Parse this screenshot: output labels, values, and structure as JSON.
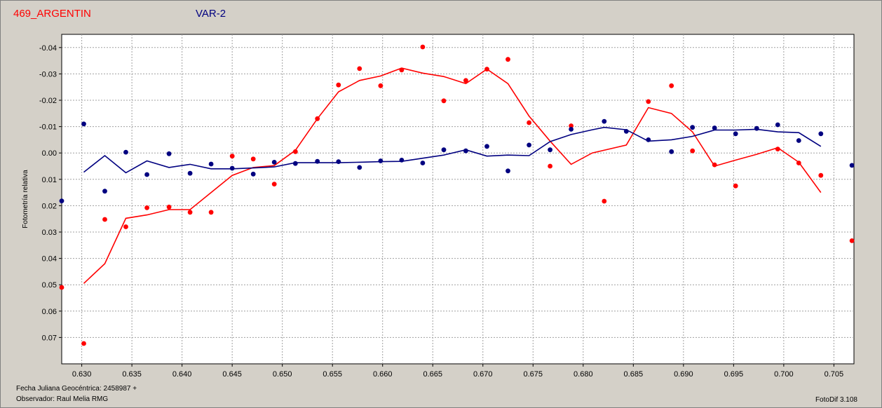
{
  "header": {
    "comparison_label": "469_ARGENTIN",
    "variable_label": "VAR-2"
  },
  "footer": {
    "julian_label": "Fecha Juliana Geocéntrica: 2458987 +",
    "observer_label": "Observador: Raul Melia RMG",
    "software_label": "FotoDif 3.108"
  },
  "colors": {
    "background": "#d4d0c8",
    "plot_area": "#ffffff",
    "grid": "#a0a0a0",
    "series_red": "#ff0000",
    "series_blue": "#000080"
  },
  "chart_data": {
    "type": "scatter",
    "ylabel": "Fotometría relativa",
    "xlabel": "",
    "xlim": [
      0.628,
      0.707
    ],
    "ylim": [
      0.08,
      -0.045
    ],
    "y_inverted": true,
    "grid": true,
    "x_ticks": [
      0.63,
      0.635,
      0.64,
      0.645,
      0.65,
      0.655,
      0.66,
      0.665,
      0.67,
      0.675,
      0.68,
      0.685,
      0.69,
      0.695,
      0.7,
      0.705
    ],
    "x_tick_labels": [
      "0.630",
      "0.635",
      "0.640",
      "0.645",
      "0.650",
      "0.655",
      "0.660",
      "0.665",
      "0.670",
      "0.675",
      "0.680",
      "0.685",
      "0.690",
      "0.695",
      "0.700",
      "0.705"
    ],
    "y_ticks": [
      -0.04,
      -0.03,
      -0.02,
      -0.01,
      0.0,
      0.01,
      0.02,
      0.03,
      0.04,
      0.05,
      0.06,
      0.07
    ],
    "y_tick_labels": [
      "-0.04",
      "-0.03",
      "-0.02",
      "-0.01",
      "0.00",
      "0.01",
      "0.02",
      "0.03",
      "0.04",
      "0.05",
      "0.06",
      "0.07"
    ],
    "series": [
      {
        "color": "#ff0000",
        "points": [
          [
            0.628,
            0.051
          ],
          [
            0.6302,
            0.0723
          ],
          [
            0.6323,
            0.0252
          ],
          [
            0.6344,
            0.028
          ],
          [
            0.6365,
            0.0208
          ],
          [
            0.6387,
            0.0205
          ],
          [
            0.6408,
            0.0225
          ],
          [
            0.6429,
            0.0225
          ],
          [
            0.645,
            0.0012
          ],
          [
            0.6471,
            0.0023
          ],
          [
            0.6492,
            0.0118
          ],
          [
            0.6513,
            -0.0005
          ],
          [
            0.6535,
            -0.013
          ],
          [
            0.6556,
            -0.0258
          ],
          [
            0.6577,
            -0.032
          ],
          [
            0.6598,
            -0.0255
          ],
          [
            0.6619,
            -0.0315
          ],
          [
            0.664,
            -0.0402
          ],
          [
            0.6661,
            -0.0198
          ],
          [
            0.6683,
            -0.0275
          ],
          [
            0.6704,
            -0.0318
          ],
          [
            0.6725,
            -0.0355
          ],
          [
            0.6746,
            -0.0115
          ],
          [
            0.6767,
            0.005
          ],
          [
            0.6788,
            -0.0103
          ],
          [
            0.6809,
            null
          ],
          [
            0.6821,
            0.0183
          ],
          [
            0.6865,
            -0.0195
          ],
          [
            0.6888,
            -0.0255
          ],
          [
            0.6909,
            -0.0008
          ],
          [
            0.6931,
            0.0045
          ],
          [
            0.6952,
            0.0125
          ],
          [
            0.6994,
            -0.0015
          ],
          [
            0.7015,
            0.0038
          ],
          [
            0.7037,
            0.0085
          ],
          [
            0.7068,
            0.0333
          ]
        ],
        "trend": [
          [
            0.6302,
            0.0495
          ],
          [
            0.6323,
            0.042
          ],
          [
            0.6344,
            0.0248
          ],
          [
            0.6365,
            0.0235
          ],
          [
            0.6387,
            0.0215
          ],
          [
            0.6408,
            0.0215
          ],
          [
            0.6429,
            0.015
          ],
          [
            0.645,
            0.0085
          ],
          [
            0.6471,
            0.0055
          ],
          [
            0.6492,
            0.0048
          ],
          [
            0.6513,
            -0.001
          ],
          [
            0.6535,
            -0.013
          ],
          [
            0.6556,
            -0.0232
          ],
          [
            0.6577,
            -0.0275
          ],
          [
            0.6598,
            -0.0292
          ],
          [
            0.6619,
            -0.0322
          ],
          [
            0.664,
            -0.0303
          ],
          [
            0.6661,
            -0.029
          ],
          [
            0.6683,
            -0.0263
          ],
          [
            0.6704,
            -0.0318
          ],
          [
            0.6725,
            -0.0263
          ],
          [
            0.6746,
            -0.014
          ],
          [
            0.6767,
            -0.0045
          ],
          [
            0.6788,
            0.0043
          ],
          [
            0.6809,
            0.0
          ],
          [
            0.6843,
            -0.003
          ],
          [
            0.6865,
            -0.0172
          ],
          [
            0.6888,
            -0.015
          ],
          [
            0.6909,
            -0.008
          ],
          [
            0.6931,
            0.005
          ],
          [
            0.6952,
            0.0027
          ],
          [
            0.6973,
            0.0005
          ],
          [
            0.6994,
            -0.002
          ],
          [
            0.7015,
            0.0035
          ],
          [
            0.7037,
            0.015
          ]
        ]
      },
      {
        "color": "#000080",
        "points": [
          [
            0.628,
            0.0182
          ],
          [
            0.6302,
            -0.011
          ],
          [
            0.6323,
            0.0145
          ],
          [
            0.6344,
            -0.0003
          ],
          [
            0.6365,
            0.0082
          ],
          [
            0.6387,
            0.0003
          ],
          [
            0.6408,
            0.0077
          ],
          [
            0.6429,
            0.0042
          ],
          [
            0.645,
            0.0058
          ],
          [
            0.6471,
            0.008
          ],
          [
            0.6492,
            0.0035
          ],
          [
            0.6513,
            0.004
          ],
          [
            0.6535,
            0.0032
          ],
          [
            0.6556,
            0.0033
          ],
          [
            0.6577,
            0.0055
          ],
          [
            0.6598,
            0.003
          ],
          [
            0.6619,
            0.0027
          ],
          [
            0.664,
            0.0038
          ],
          [
            0.6661,
            -0.0012
          ],
          [
            0.6683,
            -0.0008
          ],
          [
            0.6704,
            -0.0025
          ],
          [
            0.6725,
            0.0068
          ],
          [
            0.6746,
            -0.003
          ],
          [
            0.6767,
            -0.0012
          ],
          [
            0.6788,
            -0.009
          ],
          [
            0.6821,
            -0.012
          ],
          [
            0.6843,
            -0.0082
          ],
          [
            0.6865,
            -0.005
          ],
          [
            0.6888,
            -0.0005
          ],
          [
            0.6909,
            -0.0097
          ],
          [
            0.6931,
            -0.0095
          ],
          [
            0.6952,
            -0.0073
          ],
          [
            0.6973,
            -0.0093
          ],
          [
            0.6994,
            -0.0107
          ],
          [
            0.7015,
            -0.0047
          ],
          [
            0.7037,
            -0.0073
          ],
          [
            0.7068,
            0.0047
          ]
        ],
        "trend": [
          [
            0.6302,
            0.0073
          ],
          [
            0.6323,
            0.001
          ],
          [
            0.6344,
            0.0075
          ],
          [
            0.6365,
            0.003
          ],
          [
            0.6387,
            0.0055
          ],
          [
            0.6408,
            0.0043
          ],
          [
            0.6429,
            0.006
          ],
          [
            0.645,
            0.006
          ],
          [
            0.6471,
            0.0057
          ],
          [
            0.6492,
            0.0053
          ],
          [
            0.6513,
            0.0037
          ],
          [
            0.6535,
            0.0037
          ],
          [
            0.6556,
            0.0037
          ],
          [
            0.6577,
            0.0035
          ],
          [
            0.6598,
            0.0033
          ],
          [
            0.6619,
            0.0032
          ],
          [
            0.664,
            0.002
          ],
          [
            0.6661,
            0.0008
          ],
          [
            0.6683,
            -0.0012
          ],
          [
            0.6704,
            0.0012
          ],
          [
            0.6725,
            0.0008
          ],
          [
            0.6746,
            0.001
          ],
          [
            0.6767,
            -0.0043
          ],
          [
            0.6788,
            -0.007
          ],
          [
            0.6809,
            -0.0088
          ],
          [
            0.6821,
            -0.0097
          ],
          [
            0.6843,
            -0.0088
          ],
          [
            0.6865,
            -0.0045
          ],
          [
            0.6888,
            -0.005
          ],
          [
            0.6909,
            -0.0063
          ],
          [
            0.6931,
            -0.0087
          ],
          [
            0.6952,
            -0.0087
          ],
          [
            0.6973,
            -0.009
          ],
          [
            0.6994,
            -0.008
          ],
          [
            0.7015,
            -0.0077
          ],
          [
            0.7037,
            -0.0025
          ]
        ]
      }
    ]
  }
}
